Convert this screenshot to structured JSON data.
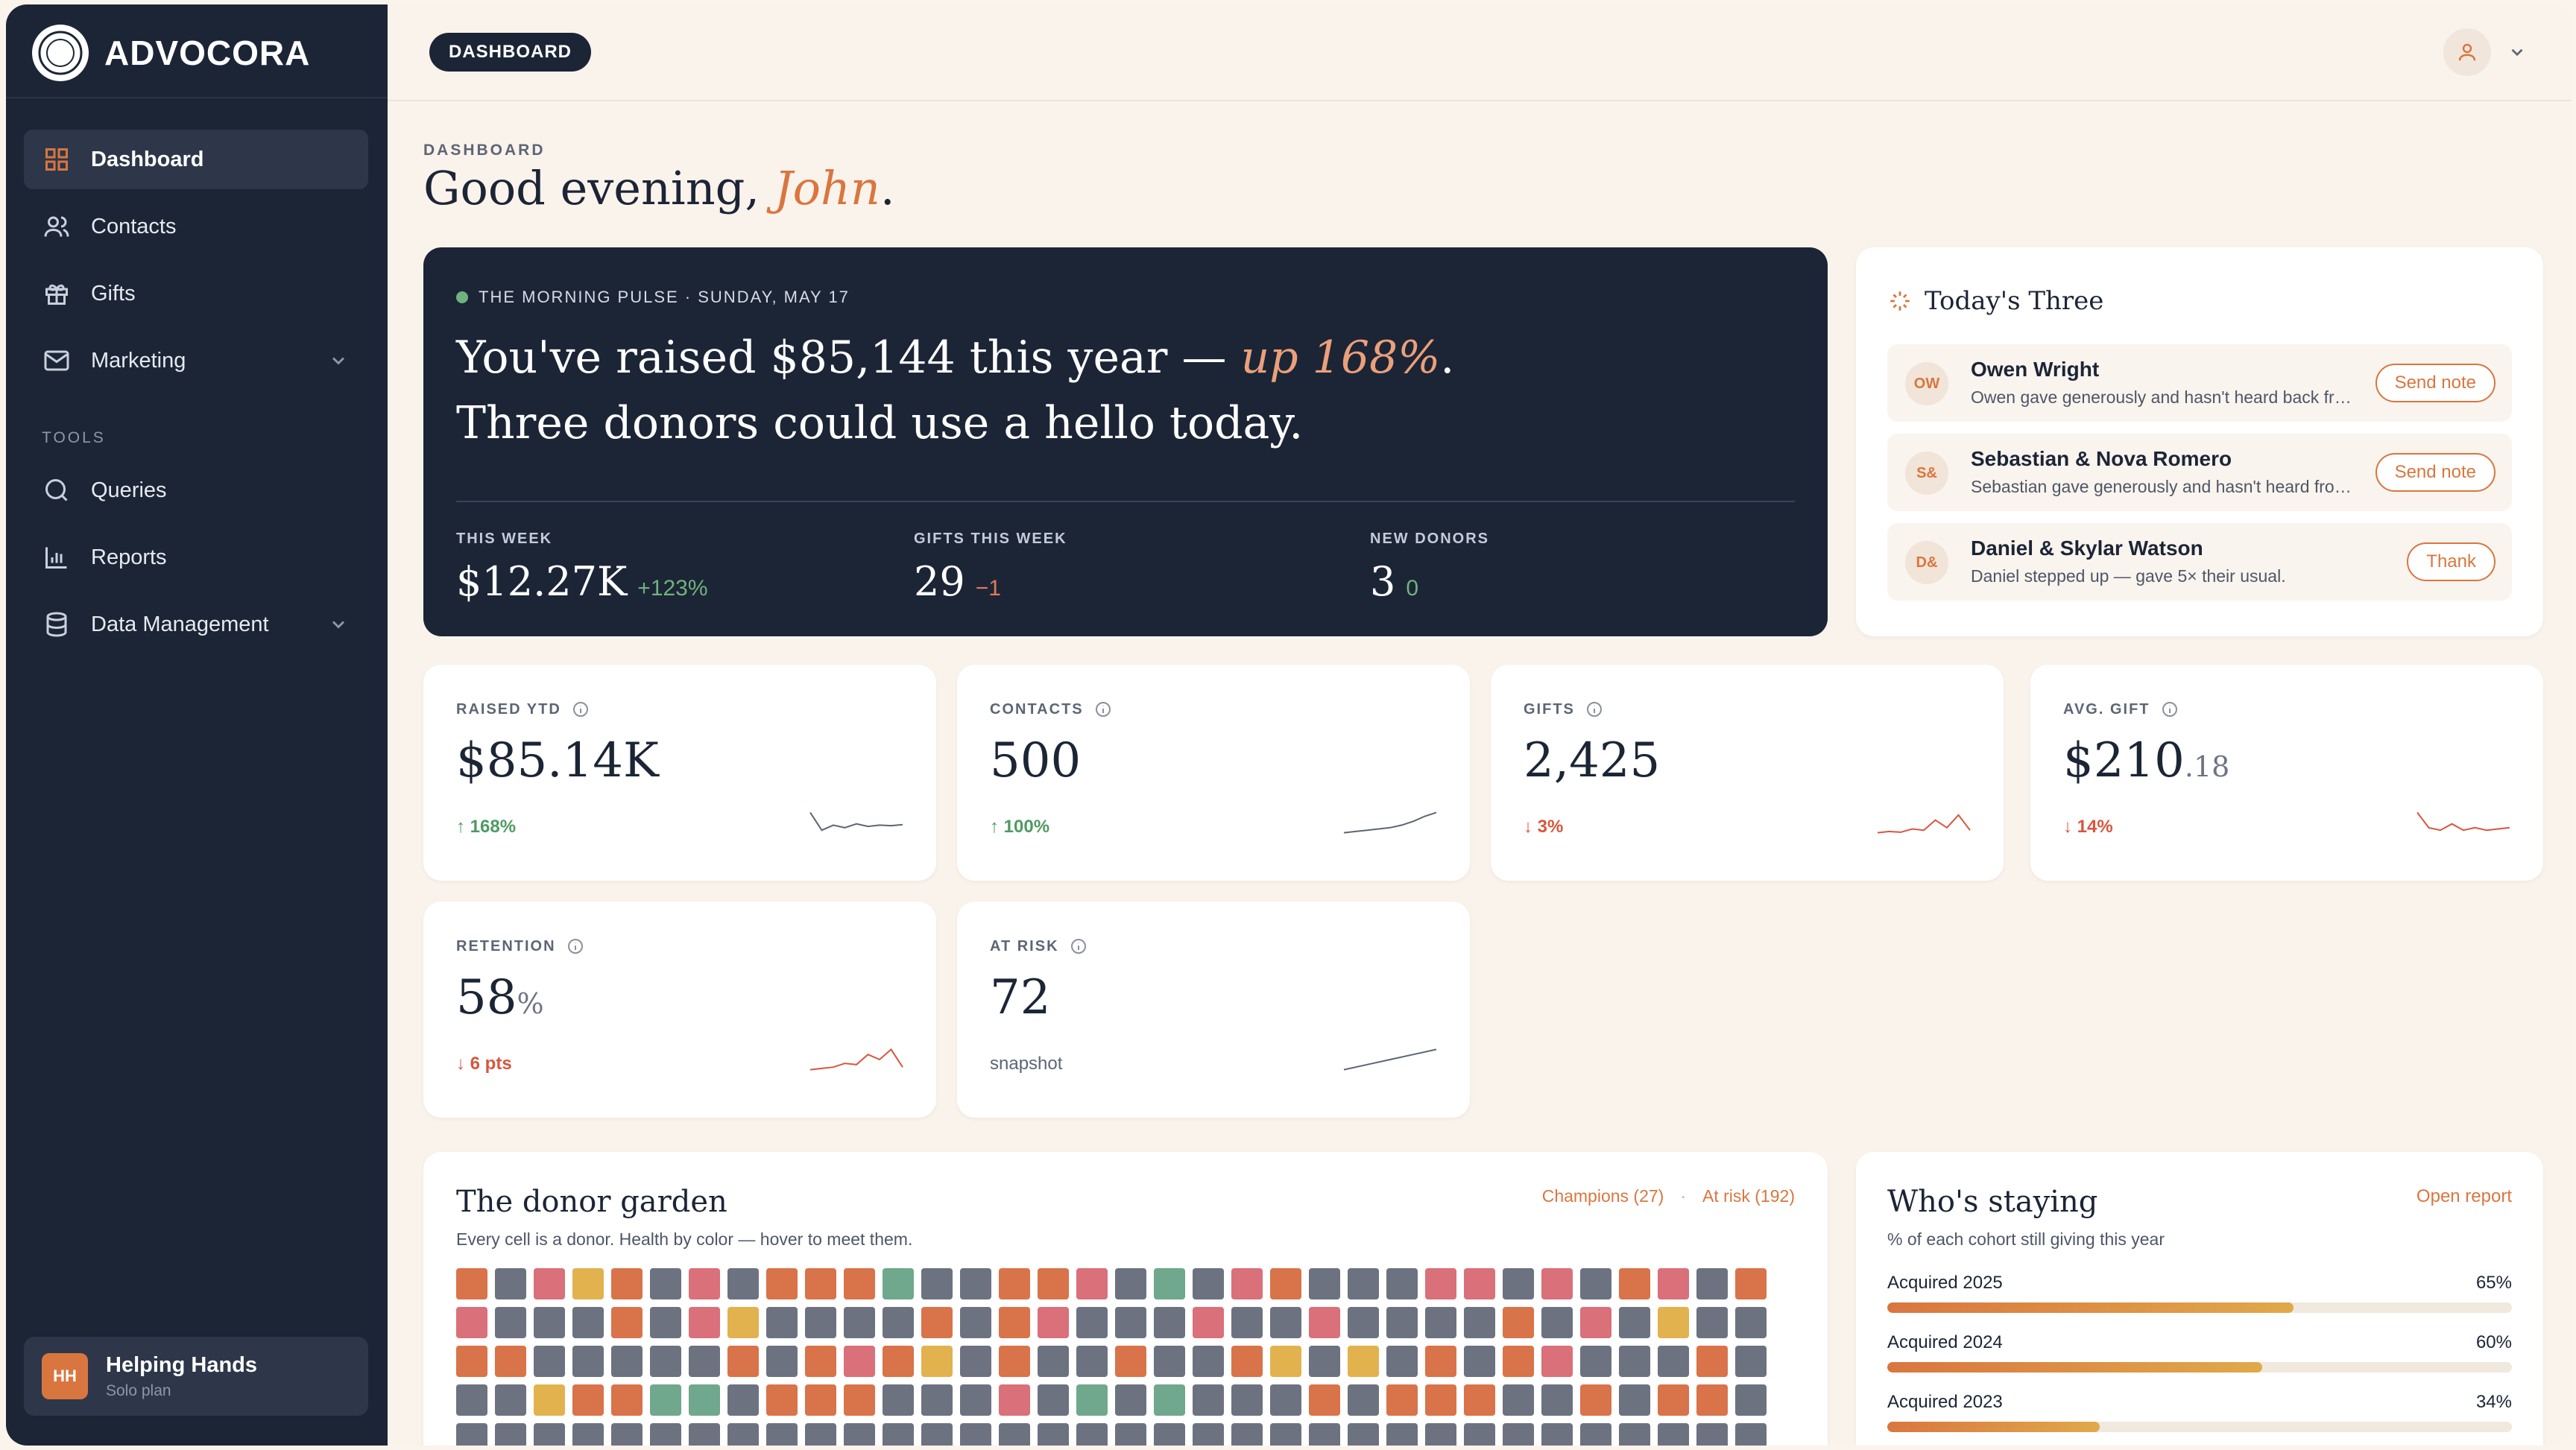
{
  "app": {
    "brand": "ADVOCORA"
  },
  "sidebar": {
    "items": [
      {
        "label": "Dashboard",
        "icon": "grid-icon",
        "active": true
      },
      {
        "label": "Contacts",
        "icon": "users-icon"
      },
      {
        "label": "Gifts",
        "icon": "gift-icon"
      },
      {
        "label": "Marketing",
        "icon": "mail-icon",
        "expandable": true
      }
    ],
    "tools_label": "TOOLS",
    "tools": [
      {
        "label": "Queries",
        "icon": "search-icon"
      },
      {
        "label": "Reports",
        "icon": "bar-chart-icon"
      },
      {
        "label": "Data Management",
        "icon": "database-icon",
        "expandable": true
      }
    ],
    "org": {
      "initials": "HH",
      "name": "Helping Hands",
      "plan": "Solo plan"
    }
  },
  "topbar": {
    "crumb": "DASHBOARD"
  },
  "page": {
    "eyebrow": "DASHBOARD",
    "greeting": "Good evening, ",
    "name": "John",
    "punct": "."
  },
  "pulse": {
    "label": "THE MORNING PULSE · SUNDAY, MAY 17",
    "head_a": "You've raised $85,144 this year — ",
    "head_em": "up 168%",
    "head_b": ". Three donors could use a hello today.",
    "stats": [
      {
        "label": "THIS WEEK",
        "value": "$12.27K",
        "delta": "+123%"
      },
      {
        "label": "GIFTS THIS WEEK",
        "value": "29",
        "delta": "−1"
      },
      {
        "label": "NEW DONORS",
        "value": "3",
        "delta": "0"
      }
    ]
  },
  "three": {
    "title": "Today's Three",
    "rows": [
      {
        "initials": "OW",
        "name": "Owen Wright",
        "sub": "Owen gave generously and hasn't heard back from us in a while.",
        "action": "Send note"
      },
      {
        "initials": "S&",
        "name": "Sebastian & Nova Romero",
        "sub": "Sebastian gave generously and hasn't heard from us in a while.",
        "action": "Send note"
      },
      {
        "initials": "D&",
        "name": "Daniel & Skylar Watson",
        "sub": "Daniel stepped up — gave 5× their usual.",
        "action": "Thank"
      }
    ]
  },
  "kpis": [
    {
      "label": "RAISED YTD",
      "value": "$85.14K",
      "delta": "↑ 168%",
      "trend": "up",
      "spark": [
        0.9,
        0.2,
        0.4,
        0.3,
        0.45,
        0.35,
        0.4,
        0.38,
        0.42
      ]
    },
    {
      "label": "CONTACTS",
      "value": "500",
      "delta": "↑ 100%",
      "trend": "up",
      "spark": [
        0.1,
        0.15,
        0.2,
        0.25,
        0.3,
        0.4,
        0.55,
        0.75,
        0.9
      ]
    },
    {
      "label": "GIFTS",
      "value": "2,425",
      "delta": "↓ 3%",
      "trend": "down",
      "spark": [
        0.1,
        0.15,
        0.12,
        0.25,
        0.2,
        0.6,
        0.3,
        0.8,
        0.2
      ]
    },
    {
      "label": "AVG. GIFT",
      "value": "$210",
      "cents": ".18",
      "delta": "↓ 14%",
      "trend": "down",
      "spark": [
        0.9,
        0.3,
        0.2,
        0.45,
        0.2,
        0.3,
        0.2,
        0.25,
        0.3
      ]
    },
    {
      "label": "RETENTION",
      "value": "58",
      "unit": "%",
      "delta": "↓ 6 pts",
      "trend": "down",
      "spark": [
        0.1,
        0.15,
        0.2,
        0.35,
        0.3,
        0.7,
        0.5,
        0.9,
        0.2
      ]
    },
    {
      "label": "AT RISK",
      "value": "72",
      "delta": "snapshot",
      "trend": "neutral",
      "spark": [
        0.1,
        0.3,
        0.5,
        0.7,
        0.9
      ]
    }
  ],
  "garden": {
    "title": "The donor garden",
    "subtitle": "Every cell is a donor. Health by color — hover to meet them.",
    "champions": "Champions (27)",
    "at_risk": "At risk (192)",
    "colors": {
      "r": "#d9734a",
      "g": "#6c7280",
      "p": "#d9707a",
      "y": "#e2b24f",
      "t": "#6fa88c"
    },
    "rows": [
      "rgpyrgpgrrrtggrrpgtgprgggppgpgrpgr",
      "pgggrgpyggggrgrpgggpggpggggrgpgyg",
      "rrgggggrgrprygrggrggrygygrgrpgggrg",
      "ggyrrttgrrrgggpgtgtgggrgrrrggrgrr",
      "gggggggggggggggggggggggggggggggggg"
    ]
  },
  "staying": {
    "title": "Who's staying",
    "subtitle": "% of each cohort still giving this year",
    "link": "Open report",
    "cohorts": [
      {
        "label": "Acquired 2025",
        "pct": "65%",
        "value": 0.65
      },
      {
        "label": "Acquired 2024",
        "pct": "60%",
        "value": 0.6
      },
      {
        "label": "Acquired 2023",
        "pct": "34%",
        "value": 0.34
      }
    ]
  }
}
